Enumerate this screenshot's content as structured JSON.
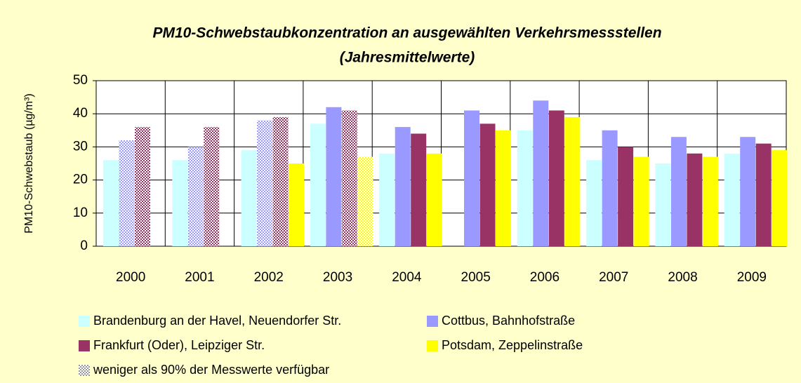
{
  "chart_data": {
    "type": "bar",
    "title": "PM10-Schwebstaubkonzentration an ausgewählten Verkehrsmessstellen",
    "subtitle": "(Jahresmittelwerte)",
    "y_label": "PM10-Schwebstaub (µg/m³)",
    "categories": [
      "2000",
      "2001",
      "2002",
      "2003",
      "2004",
      "2005",
      "2006",
      "2007",
      "2008",
      "2009"
    ],
    "series": [
      {
        "name": "Brandenburg an der Havel, Neuendorfer Str.",
        "color": "#ccffff",
        "values": [
          26,
          26,
          29,
          37,
          28,
          null,
          35,
          26,
          25,
          28
        ],
        "partial": [
          false,
          false,
          false,
          false,
          false,
          false,
          false,
          false,
          false,
          false
        ]
      },
      {
        "name": "Cottbus, Bahnhofstraße",
        "color": "#9999ff",
        "values": [
          32,
          30,
          38,
          42,
          36,
          41,
          44,
          35,
          33,
          33
        ],
        "partial": [
          true,
          true,
          true,
          false,
          false,
          false,
          false,
          false,
          false,
          false
        ]
      },
      {
        "name": "Frankfurt (Oder), Leipziger Str.",
        "color": "#993366",
        "values": [
          36,
          36,
          39,
          41,
          34,
          37,
          41,
          30,
          28,
          31
        ],
        "partial": [
          true,
          true,
          true,
          true,
          false,
          false,
          false,
          false,
          false,
          false
        ]
      },
      {
        "name": "Potsdam, Zeppelinstraße",
        "color": "#ffff00",
        "values": [
          null,
          null,
          25,
          27,
          28,
          35,
          39,
          27,
          27,
          29
        ],
        "partial": [
          false,
          false,
          false,
          true,
          false,
          false,
          false,
          false,
          false,
          false
        ]
      }
    ],
    "partial_legend": "weniger als 90% der Messwerte verfügbar",
    "ylim": [
      0,
      50
    ],
    "yticks": [
      0,
      10,
      20,
      30,
      40,
      50
    ],
    "grid": true
  }
}
